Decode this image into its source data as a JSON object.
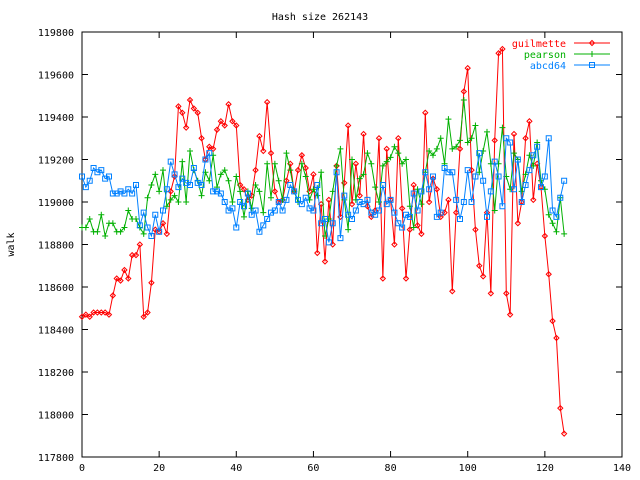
{
  "chart_data": {
    "type": "line",
    "title": "Hash size 262143",
    "xlabel": "",
    "ylabel": "walk",
    "xlim": [
      0,
      140
    ],
    "ylim": [
      117800,
      119800
    ],
    "xticks": [
      0,
      20,
      40,
      60,
      80,
      100,
      120,
      140
    ],
    "yticks": [
      117800,
      118000,
      118200,
      118400,
      118600,
      118800,
      119000,
      119200,
      119400,
      119600,
      119800
    ],
    "grid": false,
    "legend_position": "top-right",
    "series": [
      {
        "name": "guilmette",
        "color": "#ff0000",
        "marker": "diamond",
        "x": [
          0,
          1,
          2,
          3,
          4,
          5,
          6,
          7,
          8,
          9,
          10,
          11,
          12,
          13,
          14,
          15,
          16,
          17,
          18,
          19,
          20,
          21,
          22,
          23,
          24,
          25,
          26,
          27,
          28,
          29,
          30,
          31,
          32,
          33,
          34,
          35,
          36,
          37,
          38,
          39,
          40,
          41,
          42,
          43,
          44,
          45,
          46,
          47,
          48,
          49,
          50,
          51,
          52,
          53,
          54,
          55,
          56,
          57,
          58,
          59,
          60,
          61,
          62,
          63,
          64,
          65,
          66,
          67,
          68,
          69,
          70,
          71,
          72,
          73,
          74,
          75,
          76,
          77,
          78,
          79,
          80,
          81,
          82,
          83,
          84,
          85,
          86,
          87,
          88,
          89,
          90,
          91,
          92,
          93,
          94,
          95,
          96,
          97,
          98,
          99,
          100,
          101,
          102,
          103,
          104,
          105,
          106,
          107,
          108,
          109,
          110,
          111,
          112,
          113,
          114,
          115,
          116,
          117,
          118,
          119,
          120,
          121,
          122,
          123,
          124,
          125
        ],
        "y": [
          118460,
          118470,
          118460,
          118480,
          118480,
          118480,
          118480,
          118470,
          118560,
          118640,
          118630,
          118680,
          118640,
          118750,
          118750,
          118800,
          118460,
          118480,
          118620,
          118870,
          118860,
          118900,
          118850,
          119050,
          119120,
          119450,
          119420,
          119350,
          119480,
          119440,
          119420,
          119300,
          119200,
          119260,
          119250,
          119340,
          119380,
          119360,
          119460,
          119380,
          119360,
          119080,
          119060,
          119010,
          119030,
          119150,
          119310,
          119240,
          119470,
          119230,
          119050,
          119000,
          119010,
          119100,
          119180,
          119050,
          119150,
          119220,
          119160,
          119050,
          119130,
          118760,
          118990,
          118720,
          119010,
          118800,
          119170,
          118930,
          119090,
          119360,
          118990,
          119180,
          119030,
          119320,
          118980,
          118930,
          118960,
          119300,
          118640,
          119250,
          119010,
          118800,
          119300,
          118970,
          118640,
          118870,
          119080,
          118890,
          118850,
          119420,
          119000,
          119110,
          119060,
          118930,
          118950,
          119010,
          118580,
          118950,
          119250,
          119520,
          119630,
          119150,
          118870,
          118700,
          118650,
          118950,
          118570,
          119290,
          119700,
          119720,
          118570,
          118470,
          119320,
          118900,
          119000,
          119300,
          119380,
          119010,
          119180,
          119070,
          118840,
          118660,
          118440,
          118360,
          118030,
          117910
        ]
      },
      {
        "name": "pearson",
        "color": "#00b000",
        "marker": "plus",
        "x": [
          0,
          1,
          2,
          3,
          4,
          5,
          6,
          7,
          8,
          9,
          10,
          11,
          12,
          13,
          14,
          15,
          16,
          17,
          18,
          19,
          20,
          21,
          22,
          23,
          24,
          25,
          26,
          27,
          28,
          29,
          30,
          31,
          32,
          33,
          34,
          35,
          36,
          37,
          38,
          39,
          40,
          41,
          42,
          43,
          44,
          45,
          46,
          47,
          48,
          49,
          50,
          51,
          52,
          53,
          54,
          55,
          56,
          57,
          58,
          59,
          60,
          61,
          62,
          63,
          64,
          65,
          66,
          67,
          68,
          69,
          70,
          71,
          72,
          73,
          74,
          75,
          76,
          77,
          78,
          79,
          80,
          81,
          82,
          83,
          84,
          85,
          86,
          87,
          88,
          89,
          90,
          91,
          92,
          93,
          94,
          95,
          96,
          97,
          98,
          99,
          100,
          101,
          102,
          103,
          104,
          105,
          106,
          107,
          108,
          109,
          110,
          111,
          112,
          113,
          114,
          115,
          116,
          117,
          118,
          119,
          120,
          121,
          122,
          123,
          124,
          125
        ],
        "y": [
          118880,
          118880,
          118920,
          118860,
          118860,
          118940,
          118840,
          118900,
          118900,
          118860,
          118860,
          118880,
          118960,
          118920,
          118920,
          118880,
          118850,
          119020,
          119080,
          119130,
          119050,
          119150,
          118980,
          119010,
          119030,
          119000,
          119190,
          119000,
          119240,
          119150,
          119100,
          119030,
          119140,
          119100,
          119220,
          119070,
          119130,
          119150,
          119100,
          119000,
          119120,
          119050,
          118930,
          119050,
          118970,
          119080,
          119050,
          118950,
          119180,
          119020,
          119180,
          119100,
          119010,
          119230,
          119150,
          119050,
          119000,
          119180,
          119120,
          119010,
          119060,
          119030,
          119140,
          118840,
          118920,
          119050,
          119170,
          119250,
          119010,
          118870,
          119200,
          119010,
          119110,
          119130,
          119230,
          119180,
          119070,
          119000,
          119170,
          119190,
          119210,
          119260,
          119230,
          119180,
          119200,
          118980,
          118880,
          119060,
          118990,
          119140,
          119240,
          119220,
          119250,
          119300,
          119180,
          119390,
          119250,
          119260,
          119290,
          119480,
          119280,
          119300,
          119360,
          119140,
          119240,
          119330,
          119180,
          118960,
          119180,
          119350,
          119120,
          119060,
          119230,
          119200,
          119050,
          119130,
          119220,
          119170,
          119280,
          119100,
          119060,
          118940,
          118900,
          118860,
          119020,
          118850
        ]
      },
      {
        "name": "abcd64",
        "color": "#0080ff",
        "marker": "square",
        "x": [
          0,
          1,
          2,
          3,
          4,
          5,
          6,
          7,
          8,
          9,
          10,
          11,
          12,
          13,
          14,
          15,
          16,
          17,
          18,
          19,
          20,
          21,
          22,
          23,
          24,
          25,
          26,
          27,
          28,
          29,
          30,
          31,
          32,
          33,
          34,
          35,
          36,
          37,
          38,
          39,
          40,
          41,
          42,
          43,
          44,
          45,
          46,
          47,
          48,
          49,
          50,
          51,
          52,
          53,
          54,
          55,
          56,
          57,
          58,
          59,
          60,
          61,
          62,
          63,
          64,
          65,
          66,
          67,
          68,
          69,
          70,
          71,
          72,
          73,
          74,
          75,
          76,
          77,
          78,
          79,
          80,
          81,
          82,
          83,
          84,
          85,
          86,
          87,
          88,
          89,
          90,
          91,
          92,
          93,
          94,
          95,
          96,
          97,
          98,
          99,
          100,
          101,
          102,
          103,
          104,
          105,
          106,
          107,
          108,
          109,
          110,
          111,
          112,
          113,
          114,
          115,
          116,
          117,
          118,
          119,
          120,
          121,
          122,
          123,
          124,
          125
        ],
        "y": [
          119120,
          119070,
          119100,
          119160,
          119140,
          119150,
          119110,
          119120,
          119040,
          119040,
          119050,
          119040,
          119060,
          119040,
          119080,
          118890,
          118950,
          118880,
          118840,
          118940,
          118860,
          118960,
          119060,
          119190,
          119130,
          119070,
          119110,
          119090,
          119080,
          119160,
          119090,
          119080,
          119200,
          119230,
          119050,
          119050,
          119040,
          119000,
          118960,
          118970,
          118880,
          119000,
          118980,
          119040,
          118940,
          118960,
          118860,
          118890,
          118920,
          118950,
          118960,
          119000,
          118960,
          119010,
          119080,
          119050,
          119010,
          118990,
          119020,
          118970,
          118960,
          119080,
          118900,
          118920,
          118810,
          118900,
          119140,
          118830,
          119030,
          118940,
          118920,
          118960,
          119000,
          118990,
          119010,
          118950,
          118940,
          118960,
          119080,
          118990,
          119010,
          118950,
          118900,
          118880,
          118940,
          118930,
          119040,
          118960,
          119050,
          119140,
          119060,
          119120,
          118930,
          118950,
          119160,
          119140,
          119140,
          119010,
          118920,
          119000,
          119150,
          119000,
          119120,
          119230,
          119100,
          118930,
          119050,
          119190,
          119120,
          118980,
          119300,
          119280,
          119060,
          119200,
          119000,
          119080,
          119150,
          119220,
          119260,
          119070,
          119120,
          119300,
          118960,
          118930,
          119020,
          119100
        ]
      }
    ]
  }
}
